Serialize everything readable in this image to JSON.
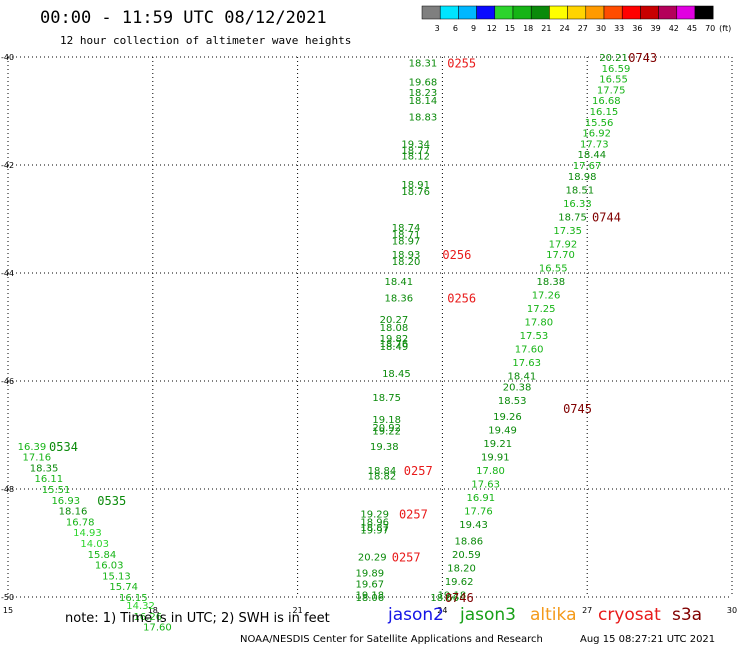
{
  "title": "00:00 - 11:59 UTC 08/12/2021",
  "subtitle": "12 hour collection of altimeter wave heights",
  "footer_note": "note: 1) Time is in UTC; 2) SWH is in feet",
  "credit": "NOAA/NESDIS Center for Satellite Applications and Research",
  "credit_time": "Aug 15 08:27:21 UTC 2021",
  "satellites": [
    {
      "name": "jason2",
      "color": "#1515e6"
    },
    {
      "name": "jason3",
      "color": "#18a018"
    },
    {
      "name": "altika",
      "color": "#f49a1a"
    },
    {
      "name": "cryosat",
      "color": "#e81a1a"
    },
    {
      "name": "s3a",
      "color": "#800000"
    }
  ],
  "color_scale": {
    "labels": [
      "3",
      "6",
      "9",
      "12",
      "15",
      "18",
      "21",
      "24",
      "27",
      "30",
      "33",
      "36",
      "39",
      "42",
      "45",
      "70",
      "(ft)"
    ],
    "colors": [
      "#7f7f7f",
      "#00e5ff",
      "#00b7ff",
      "#0a0aff",
      "#2cd42c",
      "#16b416",
      "#0a8a0a",
      "#ffff00",
      "#ffd400",
      "#ff9a00",
      "#ff4c00",
      "#ff0000",
      "#c80000",
      "#b4005a",
      "#e100e1",
      "#000000"
    ]
  },
  "chart_data": {
    "type": "scatter",
    "title": "00:00 - 11:59 UTC 08/12/2021",
    "subtitle": "12 hour collection of altimeter wave heights",
    "x_ticks": [
      15,
      18,
      21,
      24,
      27,
      30
    ],
    "y_ticks": [
      -40,
      -42,
      -44,
      -46,
      -48,
      -50
    ],
    "xlim": [
      15,
      30
    ],
    "ylim": [
      -50,
      -40
    ],
    "grid": true,
    "unit": "ft",
    "pass_labels": [
      {
        "text": "0255",
        "x": 24.1,
        "y": -40.1,
        "color": "#e81a1a"
      },
      {
        "text": "0256",
        "x": 24.0,
        "y": -43.65,
        "color": "#e81a1a"
      },
      {
        "text": "0256",
        "x": 24.1,
        "y": -44.45,
        "color": "#e81a1a"
      },
      {
        "text": "0257",
        "x": 23.2,
        "y": -47.65,
        "color": "#e81a1a"
      },
      {
        "text": "0257",
        "x": 23.1,
        "y": -48.45,
        "color": "#e81a1a"
      },
      {
        "text": "0257",
        "x": 22.95,
        "y": -49.25,
        "color": "#e81a1a"
      },
      {
        "text": "0743",
        "x": 27.85,
        "y": -40.0,
        "color": "#800000"
      },
      {
        "text": "0744",
        "x": 27.1,
        "y": -42.95,
        "color": "#800000"
      },
      {
        "text": "0745",
        "x": 26.5,
        "y": -46.5,
        "color": "#800000"
      },
      {
        "text": "0746",
        "x": 24.05,
        "y": -50.0,
        "color": "#800000"
      },
      {
        "text": "0534",
        "x": 15.85,
        "y": -47.2,
        "color": "#0a8a0a"
      },
      {
        "text": "0535",
        "x": 16.85,
        "y": -48.2,
        "color": "#0a8a0a"
      }
    ],
    "series": [
      {
        "name": "cryosat",
        "points": [
          {
            "x": 23.3,
            "y": -40.1,
            "v": "18.31"
          },
          {
            "x": 23.3,
            "y": -40.45,
            "v": "19.68"
          },
          {
            "x": 23.3,
            "y": -40.65,
            "v": "18.23"
          },
          {
            "x": 23.3,
            "y": -40.8,
            "v": "18.14"
          },
          {
            "x": 23.3,
            "y": -41.1,
            "v": "18.83"
          },
          {
            "x": 23.15,
            "y": -41.6,
            "v": "19.34"
          },
          {
            "x": 23.15,
            "y": -41.72,
            "v": "18.77"
          },
          {
            "x": 23.15,
            "y": -41.82,
            "v": "18.12"
          },
          {
            "x": 23.15,
            "y": -42.35,
            "v": "18.91"
          },
          {
            "x": 23.15,
            "y": -42.48,
            "v": "18.76"
          },
          {
            "x": 22.95,
            "y": -43.15,
            "v": "18.74"
          },
          {
            "x": 22.95,
            "y": -43.28,
            "v": "18.71"
          },
          {
            "x": 22.95,
            "y": -43.4,
            "v": "18.97"
          },
          {
            "x": 22.95,
            "y": -43.65,
            "v": "18.93"
          },
          {
            "x": 22.95,
            "y": -43.78,
            "v": "18.20"
          },
          {
            "x": 22.8,
            "y": -44.15,
            "v": "18.41"
          },
          {
            "x": 22.8,
            "y": -44.45,
            "v": "18.36"
          },
          {
            "x": 22.7,
            "y": -44.85,
            "v": "20.27"
          },
          {
            "x": 22.7,
            "y": -45.0,
            "v": "18.08"
          },
          {
            "x": 22.7,
            "y": -45.2,
            "v": "19.82"
          },
          {
            "x": 22.7,
            "y": -45.3,
            "v": "18.76"
          },
          {
            "x": 22.7,
            "y": -45.35,
            "v": "18.49"
          },
          {
            "x": 22.75,
            "y": -45.85,
            "v": "18.45"
          },
          {
            "x": 22.55,
            "y": -46.3,
            "v": "18.75"
          },
          {
            "x": 22.55,
            "y": -46.7,
            "v": "19.18"
          },
          {
            "x": 22.55,
            "y": -46.85,
            "v": "20.92"
          },
          {
            "x": 22.55,
            "y": -46.92,
            "v": "19.22"
          },
          {
            "x": 22.5,
            "y": -47.2,
            "v": "19.38"
          },
          {
            "x": 22.45,
            "y": -47.65,
            "v": "18.84"
          },
          {
            "x": 22.45,
            "y": -47.75,
            "v": "18.82"
          },
          {
            "x": 22.3,
            "y": -48.45,
            "v": "19.29"
          },
          {
            "x": 22.3,
            "y": -48.6,
            "v": "18.96"
          },
          {
            "x": 22.3,
            "y": -48.7,
            "v": "18.87"
          },
          {
            "x": 22.3,
            "y": -48.75,
            "v": "19.97"
          },
          {
            "x": 22.25,
            "y": -49.25,
            "v": "20.29"
          },
          {
            "x": 22.2,
            "y": -49.55,
            "v": "19.89"
          },
          {
            "x": 22.2,
            "y": -49.75,
            "v": "19.67"
          },
          {
            "x": 22.2,
            "y": -49.95,
            "v": "19.18"
          },
          {
            "x": 22.2,
            "y": -50.0,
            "v": "18.06"
          }
        ]
      },
      {
        "name": "s3a",
        "points": [
          {
            "x": 27.25,
            "y": -40.0,
            "v": "20.21"
          },
          {
            "x": 27.3,
            "y": -40.2,
            "v": "16.59"
          },
          {
            "x": 27.25,
            "y": -40.4,
            "v": "16.55"
          },
          {
            "x": 27.2,
            "y": -40.6,
            "v": "17.75"
          },
          {
            "x": 27.1,
            "y": -40.8,
            "v": "16.68"
          },
          {
            "x": 27.05,
            "y": -41.0,
            "v": "16.15"
          },
          {
            "x": 26.95,
            "y": -41.2,
            "v": "15.56"
          },
          {
            "x": 26.9,
            "y": -41.4,
            "v": "16.92"
          },
          {
            "x": 26.85,
            "y": -41.6,
            "v": "17.73"
          },
          {
            "x": 26.8,
            "y": -41.8,
            "v": "18.44"
          },
          {
            "x": 26.7,
            "y": -42.0,
            "v": "17.67"
          },
          {
            "x": 26.6,
            "y": -42.2,
            "v": "18.98"
          },
          {
            "x": 26.55,
            "y": -42.45,
            "v": "18.51"
          },
          {
            "x": 26.5,
            "y": -42.7,
            "v": "16.33"
          },
          {
            "x": 26.4,
            "y": -42.95,
            "v": "18.75"
          },
          {
            "x": 26.3,
            "y": -43.2,
            "v": "17.35"
          },
          {
            "x": 26.2,
            "y": -43.45,
            "v": "17.92"
          },
          {
            "x": 26.15,
            "y": -43.65,
            "v": "17.70"
          },
          {
            "x": 26.0,
            "y": -43.9,
            "v": "16.55"
          },
          {
            "x": 25.95,
            "y": -44.15,
            "v": "18.38"
          },
          {
            "x": 25.85,
            "y": -44.4,
            "v": "17.26"
          },
          {
            "x": 25.75,
            "y": -44.65,
            "v": "17.25"
          },
          {
            "x": 25.7,
            "y": -44.9,
            "v": "17.80"
          },
          {
            "x": 25.6,
            "y": -45.15,
            "v": "17.53"
          },
          {
            "x": 25.5,
            "y": -45.4,
            "v": "17.60"
          },
          {
            "x": 25.45,
            "y": -45.65,
            "v": "17.63"
          },
          {
            "x": 25.35,
            "y": -45.9,
            "v": "18.41"
          },
          {
            "x": 25.25,
            "y": -46.1,
            "v": "20.38"
          },
          {
            "x": 25.15,
            "y": -46.35,
            "v": "18.53"
          },
          {
            "x": 25.05,
            "y": -46.65,
            "v": "19.26"
          },
          {
            "x": 24.95,
            "y": -46.9,
            "v": "19.49"
          },
          {
            "x": 24.85,
            "y": -47.15,
            "v": "19.21"
          },
          {
            "x": 24.8,
            "y": -47.4,
            "v": "19.91"
          },
          {
            "x": 24.7,
            "y": -47.65,
            "v": "17.80"
          },
          {
            "x": 24.6,
            "y": -47.9,
            "v": "17.63"
          },
          {
            "x": 24.5,
            "y": -48.15,
            "v": "16.91"
          },
          {
            "x": 24.45,
            "y": -48.4,
            "v": "17.76"
          },
          {
            "x": 24.35,
            "y": -48.65,
            "v": "19.43"
          },
          {
            "x": 24.25,
            "y": -48.95,
            "v": "18.86"
          },
          {
            "x": 24.2,
            "y": -49.2,
            "v": "20.59"
          },
          {
            "x": 24.1,
            "y": -49.45,
            "v": "18.20"
          },
          {
            "x": 24.05,
            "y": -49.7,
            "v": "19.62"
          },
          {
            "x": 23.9,
            "y": -49.95,
            "v": "19.18"
          },
          {
            "x": 23.75,
            "y": -50.0,
            "v": "18.66"
          }
        ]
      },
      {
        "name": "jason3",
        "points": [
          {
            "x": 15.2,
            "y": -47.2,
            "v": "16.39"
          },
          {
            "x": 15.3,
            "y": -47.4,
            "v": "17.16"
          },
          {
            "x": 15.45,
            "y": -47.6,
            "v": "18.35"
          },
          {
            "x": 15.55,
            "y": -47.8,
            "v": "16.11"
          },
          {
            "x": 15.7,
            "y": -48.0,
            "v": "15.51"
          },
          {
            "x": 15.9,
            "y": -48.2,
            "v": "16.93"
          },
          {
            "x": 16.05,
            "y": -48.4,
            "v": "18.16"
          },
          {
            "x": 16.2,
            "y": -48.6,
            "v": "16.78"
          },
          {
            "x": 16.35,
            "y": -48.8,
            "v": "14.93"
          },
          {
            "x": 16.5,
            "y": -49.0,
            "v": "14.03"
          },
          {
            "x": 16.65,
            "y": -49.2,
            "v": "15.84"
          },
          {
            "x": 16.8,
            "y": -49.4,
            "v": "16.03"
          },
          {
            "x": 16.95,
            "y": -49.6,
            "v": "15.13"
          },
          {
            "x": 17.1,
            "y": -49.8,
            "v": "15.74"
          },
          {
            "x": 17.3,
            "y": -50.0,
            "v": "16.15"
          },
          {
            "x": 17.45,
            "y": -50.15,
            "v": "14.32"
          },
          {
            "x": 17.6,
            "y": -50.35,
            "v": "16.26"
          },
          {
            "x": 17.8,
            "y": -50.55,
            "v": "17.60"
          }
        ]
      }
    ]
  }
}
